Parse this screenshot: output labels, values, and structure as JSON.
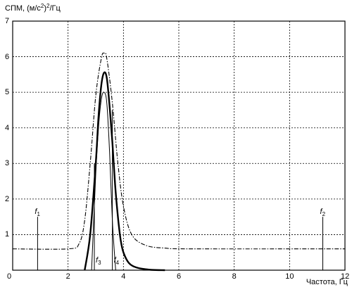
{
  "chart_data": {
    "type": "line",
    "ylabel": {
      "prefix": "СПМ, (м/с",
      "sup": "2",
      "suffix": ")",
      "sup2": "2",
      "tail": "/Гц"
    },
    "xlabel": "Частота, Гц",
    "xlim": [
      0,
      12
    ],
    "ylim": [
      0,
      7
    ],
    "x_ticks": [
      "0",
      "2",
      "4",
      "6",
      "8",
      "10",
      "12"
    ],
    "y_ticks": [
      "0",
      "1",
      "2",
      "3",
      "4",
      "5",
      "6",
      "7"
    ],
    "grid": true,
    "series": [
      {
        "style": "solid-thick",
        "x": [
          2.6,
          2.8,
          3.0,
          3.1,
          3.2,
          3.3,
          3.4,
          3.5,
          3.6,
          3.7,
          3.8,
          3.9,
          4.0,
          4.2,
          4.5,
          5.0,
          5.5
        ],
        "y": [
          0.0,
          1.0,
          3.0,
          4.3,
          5.2,
          5.55,
          5.4,
          4.6,
          3.6,
          2.4,
          1.5,
          0.85,
          0.5,
          0.2,
          0.07,
          0.01,
          0.0
        ]
      },
      {
        "style": "solid-thin",
        "x": [
          2.85,
          3.0,
          3.1,
          3.2,
          3.3,
          3.4,
          3.5,
          3.6,
          3.72
        ],
        "y": [
          0.0,
          2.7,
          4.0,
          4.8,
          5.0,
          4.7,
          3.3,
          1.4,
          0.0
        ]
      },
      {
        "style": "dash-dot",
        "x": [
          0.0,
          2.0,
          2.4,
          2.6,
          2.8,
          3.0,
          3.2,
          3.3,
          3.4,
          3.6,
          3.8,
          4.0,
          4.3,
          4.8,
          5.5,
          6.5,
          12.0
        ],
        "y": [
          0.6,
          0.6,
          0.75,
          1.4,
          3.0,
          4.9,
          5.95,
          6.1,
          5.95,
          4.7,
          3.0,
          1.8,
          1.0,
          0.7,
          0.62,
          0.6,
          0.6
        ]
      }
    ],
    "markers": [
      {
        "x": 0.9,
        "y_top": 1.5,
        "label": "f",
        "sub": "1"
      },
      {
        "x": 11.2,
        "y_top": 1.5,
        "label": "f",
        "sub": "2"
      },
      {
        "x": 2.95,
        "y_top": 3.0,
        "label": "f",
        "sub": "3"
      },
      {
        "x": 3.6,
        "y_top": 4.5,
        "label": "f",
        "sub": "4"
      }
    ]
  }
}
